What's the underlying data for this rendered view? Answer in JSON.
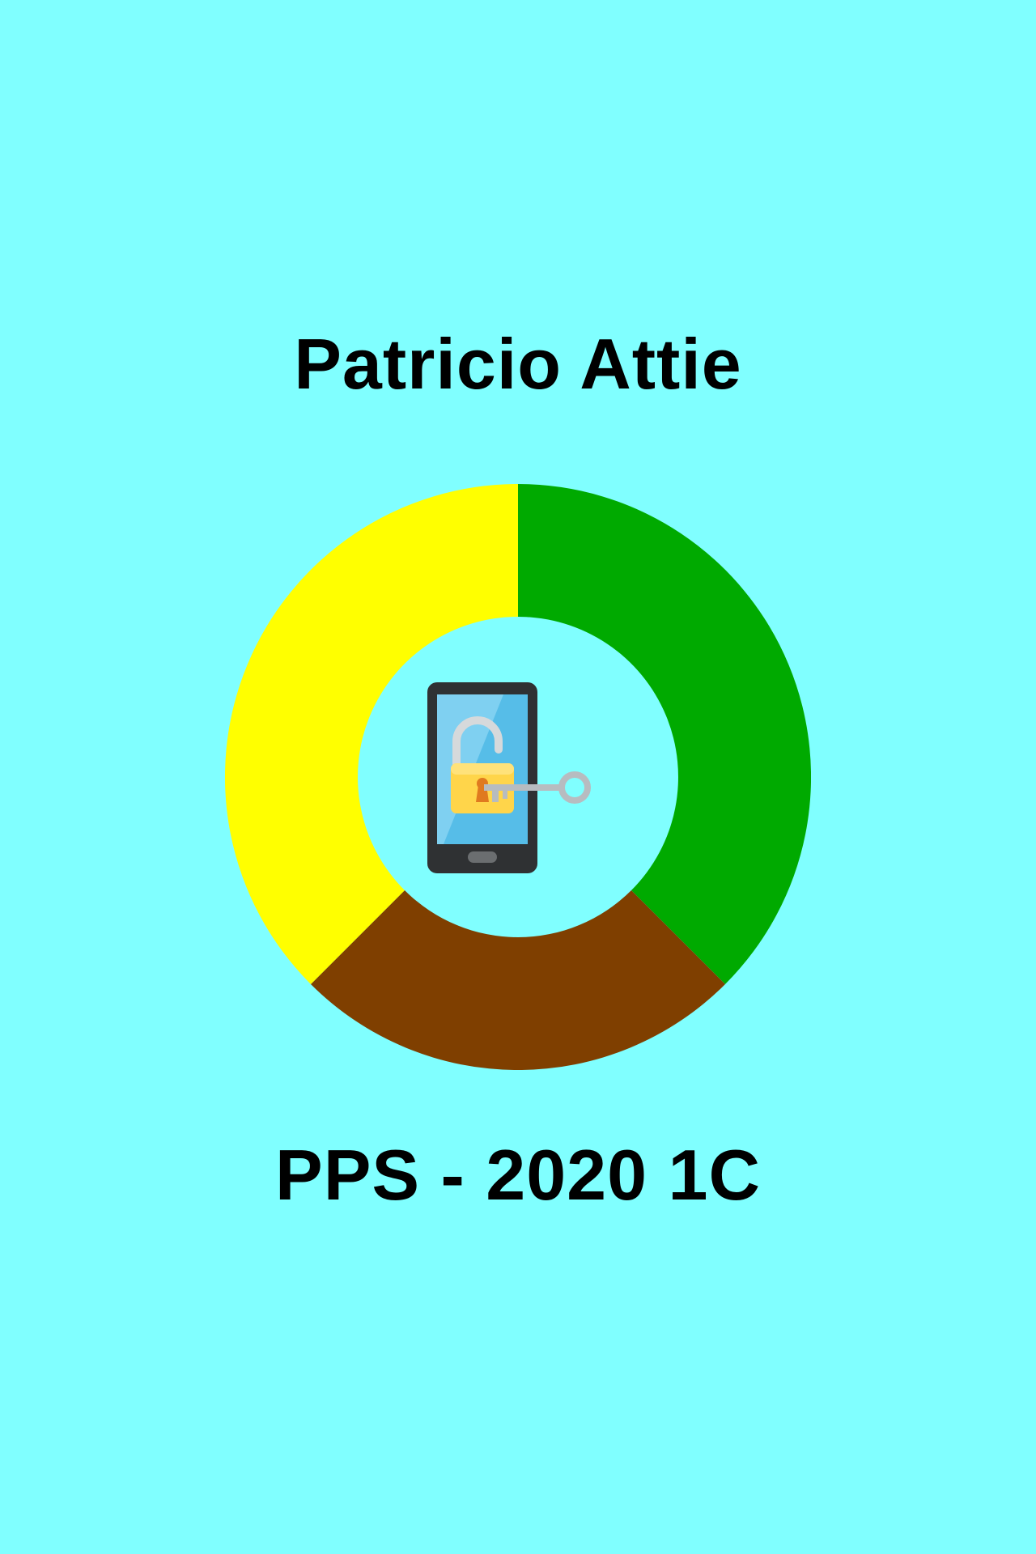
{
  "screen": {
    "background": "#80FFFF",
    "app_name": "Patricio Attie",
    "course_label": "PPS - 2020 1C"
  },
  "logo": {
    "ring_colors": {
      "right": "#00AA00",
      "bottom": "#7F3F00",
      "left": "#FFFF00"
    },
    "icon": "phone-unlock-icon"
  }
}
